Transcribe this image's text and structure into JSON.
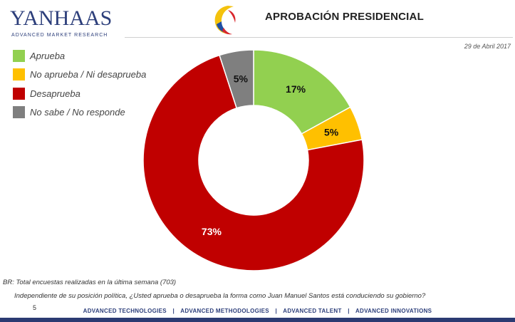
{
  "brand": {
    "logo_text": "YANHAAS",
    "tagline": "ADVANCED MARKET RESEARCH"
  },
  "header": {
    "title": "APROBACIÓN PRESIDENCIAL",
    "date": "29 de Abril 2017"
  },
  "chart_data": {
    "type": "pie",
    "style": "donut",
    "title": "APROBACIÓN PRESIDENCIAL",
    "slices": [
      {
        "name": "Aprueba",
        "value": 17,
        "label": "17%",
        "color": "#92d050"
      },
      {
        "name": "No aprueba / Ni desaprueba",
        "value": 5,
        "label": "5%",
        "color": "#ffc000"
      },
      {
        "name": "Desaprueba",
        "value": 73,
        "label": "73%",
        "color": "#c00000"
      },
      {
        "name": "No sabe /  No responde",
        "value": 5,
        "label": "5%",
        "color": "#7f7f7f"
      }
    ],
    "legend_position": "top-left"
  },
  "notes": {
    "base": "BR: Total encuestas realizadas en la última semana (703)",
    "question": "Independiente de su posición política, ¿Usted aprueba o desaprueba la forma como Juan Manuel Santos está conduciendo su gobierno?"
  },
  "footer": {
    "page_number": "5",
    "items": [
      "ADVANCED TECHNOLOGIES",
      "ADVANCED METHODOLOGIES",
      "ADVANCED TALENT",
      "ADVANCED INNOVATIONS"
    ],
    "separator": "|"
  },
  "colors": {
    "brand_navy": "#2d3f7b",
    "footer_bar": "#2b3a72"
  }
}
